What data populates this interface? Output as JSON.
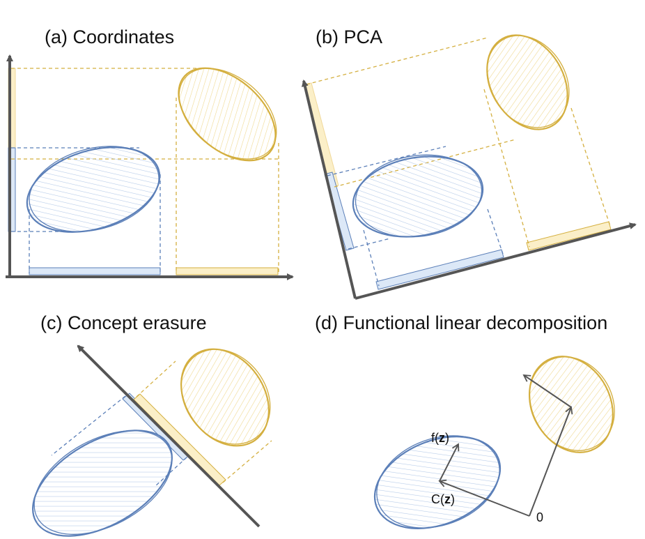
{
  "panels": {
    "a": {
      "title": "(a) Coordinates"
    },
    "b": {
      "title": "(b) PCA"
    },
    "c": {
      "title": "(c) Concept erasure"
    },
    "d": {
      "title": "(d) Functional linear decomposition"
    }
  },
  "labels": {
    "f": "f(",
    "c": "C(",
    "z": "z",
    "close": ")",
    "origin": "0"
  },
  "colors": {
    "axis": "#555555",
    "blue": "#5b7fb8",
    "blue_fill": "#dce8f7",
    "gold": "#d4af3f",
    "gold_fill": "#fbefc8"
  }
}
